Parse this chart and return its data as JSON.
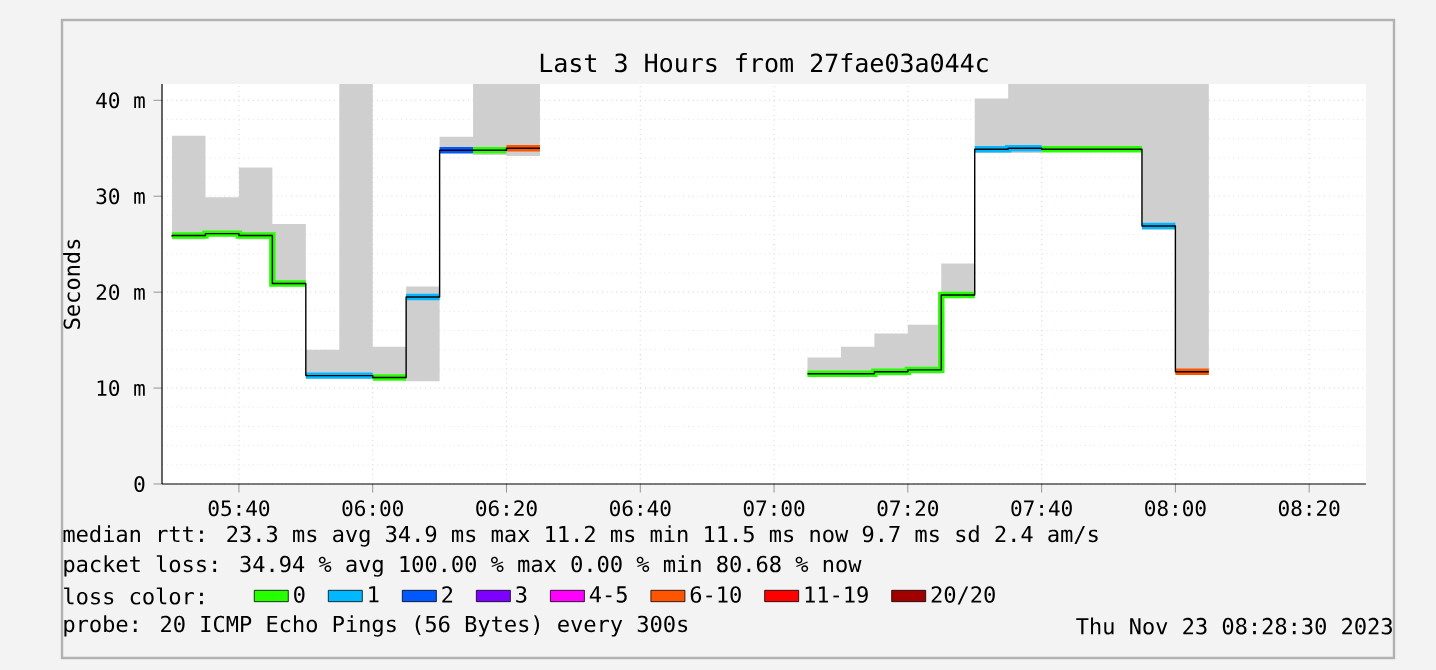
{
  "chart_data": {
    "type": "step",
    "title": "Last 3 Hours from 27fae03a044c",
    "ylabel": "Seconds",
    "legend_title": "loss color:",
    "x": [
      5.5,
      5.5833,
      5.6667,
      5.75,
      5.8333,
      5.9167,
      6.0,
      6.0833,
      6.1667,
      6.25,
      6.3333,
      6.4167,
      6.5,
      6.5833,
      6.6667,
      6.75,
      6.8333,
      6.9167,
      7.0,
      7.0833,
      7.1667,
      7.25,
      7.3333,
      7.4167,
      7.5,
      7.5833,
      7.6667,
      7.75,
      7.8333,
      7.9167,
      8.0,
      8.0833
    ],
    "series": [
      {
        "color": "#000000",
        "values": [
          25.8,
          25.9,
          26.1,
          25.9,
          20.9,
          11.3,
          11.3,
          11.1,
          19.5,
          34.8,
          34.8,
          35.0,
          null,
          null,
          null,
          null,
          null,
          null,
          null,
          null,
          11.5,
          11.5,
          11.7,
          11.9,
          19.7,
          34.9,
          35.0,
          34.9,
          34.9,
          34.9,
          26.9,
          11.7
        ],
        "lower": [
          25.5,
          25.5,
          25.8,
          25.5,
          20.6,
          11.0,
          11.0,
          11.0,
          10.7,
          34.5,
          34.3,
          34.2,
          null,
          null,
          null,
          null,
          null,
          null,
          null,
          null,
          11.3,
          11.3,
          11.3,
          11.5,
          19.4,
          34.5,
          34.5,
          34.6,
          34.6,
          34.6,
          26.5,
          11.5
        ],
        "upper": [
          41.7,
          36.3,
          29.9,
          33.0,
          27.1,
          14.0,
          41.7,
          14.3,
          20.6,
          36.2,
          41.7,
          41.7,
          null,
          null,
          null,
          null,
          null,
          null,
          null,
          null,
          13.2,
          14.3,
          15.7,
          16.6,
          23.0,
          40.2,
          41.7,
          41.7,
          41.7,
          41.7,
          41.7,
          41.7
        ]
      },
      {
        "name": "0",
        "type": "line",
        "color": "#26ff00",
        "x": [
          5.5,
          5.5833,
          5.5833,
          5.6667,
          5.6667,
          5.75,
          5.75,
          5.8333,
          null,
          6.0,
          6.0833,
          null,
          6.25,
          6.3333,
          null,
          7.0833,
          7.25,
          7.25,
          7.3333,
          7.3333,
          7.4167,
          7.4167,
          7.5,
          null,
          7.6667,
          7.9167
        ],
        "values": [
          25.9,
          25.9,
          26.1,
          26.1,
          25.9,
          25.9,
          20.9,
          20.9,
          null,
          11.1,
          11.1,
          null,
          34.8,
          34.8,
          null,
          11.5,
          11.5,
          11.7,
          11.7,
          11.9,
          11.9,
          19.7,
          19.7,
          null,
          34.9,
          34.9
        ]
      },
      {
        "name": "1",
        "type": "line",
        "color": "#00b8ff",
        "x": [
          5.8333,
          6.0,
          null,
          6.0833,
          6.1667,
          null,
          7.5,
          7.5833,
          7.5833,
          7.6667,
          null,
          7.9167,
          8.0
        ],
        "values": [
          11.3,
          11.3,
          null,
          19.5,
          19.5,
          null,
          34.9,
          34.9,
          35.0,
          35.0,
          null,
          26.9,
          26.9
        ]
      },
      {
        "name": "2",
        "type": "line",
        "color": "#0059ff",
        "x": [
          6.1667,
          6.25
        ],
        "values": [
          34.8,
          34.8
        ]
      },
      {
        "name": "3",
        "type": "line",
        "color": "#7e00ff",
        "values": [
          null,
          null,
          null,
          null,
          null,
          null,
          null,
          null,
          null,
          null,
          null,
          null,
          null,
          null,
          null,
          null,
          null,
          null,
          null,
          null,
          null,
          null,
          null,
          null,
          null,
          null,
          null,
          null,
          null,
          null,
          null,
          null
        ]
      },
      {
        "name": "4-5",
        "type": "line",
        "color": "#ff00ff",
        "values": [
          null,
          null,
          null,
          null,
          null,
          null,
          null,
          null,
          null,
          null,
          null,
          null,
          null,
          null,
          null,
          null,
          null,
          null,
          null,
          null,
          null,
          null,
          null,
          null,
          null,
          null,
          null,
          null,
          null,
          null,
          null,
          null
        ]
      },
      {
        "name": "6-10",
        "type": "line",
        "color": "#ff5500",
        "x": [
          6.3333,
          6.4167,
          null,
          8.0,
          8.0833
        ],
        "values": [
          35.0,
          35.0,
          null,
          11.7,
          11.7
        ]
      },
      {
        "name": "11-19",
        "type": "line",
        "color": "#ff0000",
        "values": [
          null,
          null,
          null,
          null,
          null,
          null,
          null,
          null,
          null,
          null,
          null,
          null,
          null,
          null,
          null,
          null,
          null,
          null,
          null,
          null,
          null,
          null,
          null,
          null,
          null,
          null,
          null,
          null,
          null,
          null,
          null,
          null
        ]
      },
      {
        "name": "20/20",
        "type": "line",
        "color": "#a10000",
        "values": [
          null,
          null,
          null,
          null,
          null,
          null,
          null,
          null,
          null,
          null,
          null,
          null,
          null,
          null,
          null,
          null,
          null,
          null,
          null,
          null,
          null,
          null,
          null,
          null,
          null,
          null,
          null,
          null,
          null,
          null,
          null,
          null
        ]
      }
    ],
    "xlim": [
      5.475,
      8.475
    ],
    "xticks": [
      {
        "value": 5.6667,
        "label": "05:40"
      },
      {
        "value": 6.0,
        "label": "06:00"
      },
      {
        "value": 6.3333,
        "label": "06:20"
      },
      {
        "value": 6.6667,
        "label": "06:40"
      },
      {
        "value": 7.0,
        "label": "07:00"
      },
      {
        "value": 7.3333,
        "label": "07:20"
      },
      {
        "value": 7.6667,
        "label": "07:40"
      },
      {
        "value": 8.0,
        "label": "08:00"
      },
      {
        "value": 8.3333,
        "label": "08:20"
      }
    ],
    "ylim": [
      0,
      41.7
    ],
    "yticks": [
      0,
      {
        "value": 10,
        "label": "10 m"
      },
      {
        "value": 20,
        "label": "20 m"
      },
      {
        "value": 30,
        "label": "30 m"
      },
      {
        "value": 40,
        "label": "40 m"
      }
    ],
    "grid": true,
    "legend": "bottom",
    "annotations": [
      "median rtt:  23.3 ms avg  34.9 ms max  11.2 ms min  11.5 ms now  9.7 ms sd  2.4   am/s",
      "packet loss: 34.94 % avg  100.00 % max  0.00 % min  80.68 % now",
      "probe:       20 ICMP Echo Pings (56 Bytes) every 300s",
      "Thu Nov 23 08:28:30 2023"
    ]
  }
}
